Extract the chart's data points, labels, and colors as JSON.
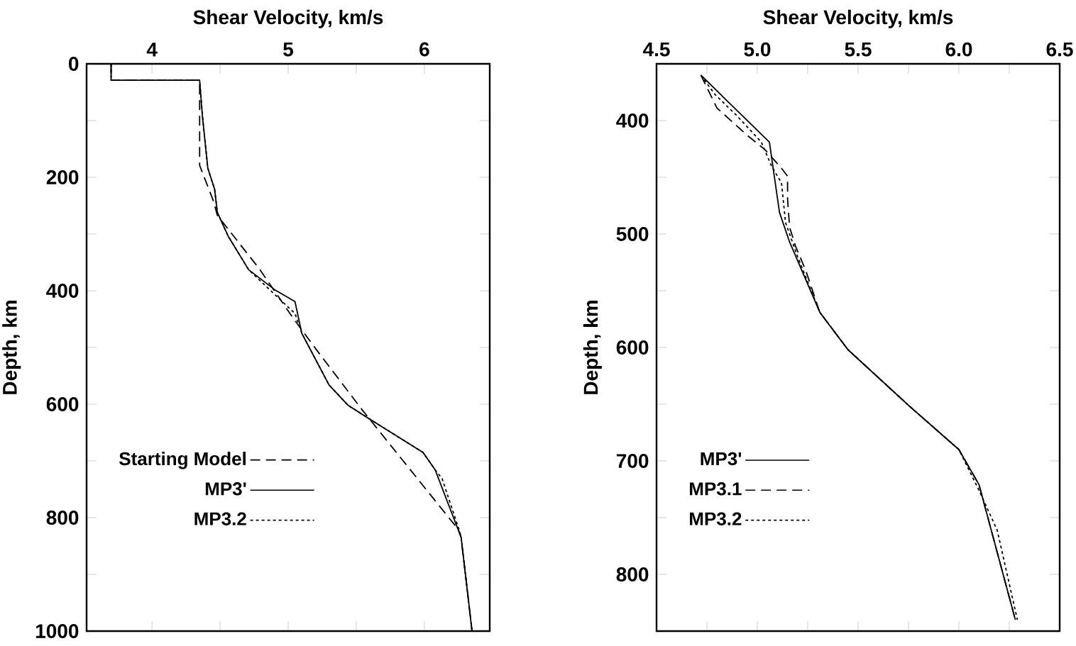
{
  "chart_data": [
    {
      "type": "line",
      "xlabel": "Shear Velocity, km/s",
      "ylabel": "Depth, km",
      "xlim": [
        3.52,
        6.48
      ],
      "ylim": [
        1000,
        0
      ],
      "xticks": [
        4,
        {
          "value": 4.5,
          "label": null
        },
        5,
        {
          "value": 5.5,
          "label": null
        },
        6
      ],
      "yticks": [
        0,
        {
          "value": 100,
          "label": null
        },
        200,
        {
          "value": 300,
          "label": null
        },
        400,
        {
          "value": 500,
          "label": null
        },
        600,
        {
          "value": 700,
          "label": null
        },
        800,
        {
          "value": 900,
          "label": null
        },
        1000
      ],
      "legend": "bottom left",
      "grid": false,
      "marker": "none",
      "series": [
        {
          "name": "Starting Model",
          "color": "#000000",
          "line_style": "dashed",
          "x": [
            3.7,
            3.7,
            4.35,
            4.35,
            4.45,
            4.48,
            4.79,
            5.03,
            5.22,
            5.55,
            6.25,
            6.27,
            6.35
          ],
          "values": [
            0,
            29,
            29,
            179,
            241,
            267,
            362,
            446,
            508,
            612,
            821,
            835,
            1000
          ]
        },
        {
          "name": "MP3'",
          "color": "#000000",
          "line_style": "solid",
          "x": [
            3.7,
            3.7,
            4.35,
            4.37,
            4.41,
            4.46,
            4.48,
            4.56,
            4.71,
            4.9,
            5.05,
            5.1,
            5.3,
            5.44,
            5.59,
            5.99,
            6.08,
            6.27,
            6.35
          ],
          "values": [
            0,
            29,
            29,
            91,
            184,
            221,
            262,
            304,
            363,
            398,
            419,
            475,
            566,
            602,
            625,
            685,
            716,
            835,
            1000
          ]
        },
        {
          "name": "MP3.2",
          "color": "#000000",
          "line_style": "dotted",
          "x": [
            3.7,
            3.7,
            4.35,
            4.37,
            4.41,
            4.46,
            4.48,
            4.56,
            4.71,
            4.85,
            5.05,
            5.1,
            5.3,
            5.44,
            5.59,
            5.99,
            6.08,
            6.13,
            6.26,
            6.27,
            6.35
          ],
          "values": [
            0,
            29,
            29,
            91,
            184,
            221,
            262,
            304,
            363,
            395,
            440,
            475,
            566,
            602,
            625,
            685,
            716,
            731,
            825,
            835,
            1000
          ]
        }
      ]
    },
    {
      "type": "line",
      "xlabel": "Shear Velocity, km/s",
      "ylabel": "Depth, km",
      "xlim": [
        4.5,
        6.5
      ],
      "ylim": [
        850,
        350
      ],
      "xticks": [
        4.5,
        {
          "value": 4.75,
          "label": null
        },
        {
          "value": 5,
          "label": "5.0"
        },
        {
          "value": 5.25,
          "label": null
        },
        5.5,
        {
          "value": 5.75,
          "label": null
        },
        {
          "value": 6,
          "label": "6.0"
        },
        {
          "value": 6.25,
          "label": null
        },
        6.5
      ],
      "yticks": [
        {
          "value": 350,
          "label": null
        },
        400,
        {
          "value": 450,
          "label": null
        },
        500,
        {
          "value": 550,
          "label": null
        },
        600,
        {
          "value": 650,
          "label": null
        },
        700,
        {
          "value": 750,
          "label": null
        },
        800,
        {
          "value": 850,
          "label": null
        }
      ],
      "legend": "bottom left",
      "grid": false,
      "marker": "none",
      "series": [
        {
          "name": "MP3'",
          "color": "#000000",
          "line_style": "solid",
          "x": [
            4.72,
            5.06,
            5.11,
            5.16,
            5.31,
            5.45,
            5.75,
            6.0,
            6.1,
            6.28
          ],
          "values": [
            360,
            419,
            481,
            507,
            569,
            602,
            651,
            690,
            721,
            840
          ]
        },
        {
          "name": "MP3.1",
          "color": "#000000",
          "line_style": "dashed",
          "x": [
            4.72,
            4.8,
            4.95,
            5.04,
            5.12,
            5.15,
            5.15,
            5.16,
            5.19,
            5.24,
            5.31,
            5.45,
            5.75,
            6.0,
            6.1,
            6.28
          ],
          "values": [
            360,
            389,
            413,
            426,
            442,
            449,
            469,
            494,
            511,
            532,
            569,
            602,
            651,
            690,
            721,
            840
          ]
        },
        {
          "name": "MP3.2",
          "color": "#000000",
          "line_style": "dotted",
          "x": [
            4.72,
            4.79,
            4.9,
            5.02,
            5.07,
            5.12,
            5.14,
            5.2,
            5.31,
            5.45,
            5.75,
            6.0,
            6.1,
            6.19,
            6.29
          ],
          "values": [
            360,
            377,
            396,
            419,
            440,
            455,
            490,
            520,
            569,
            602,
            651,
            690,
            726,
            761,
            840
          ]
        }
      ]
    }
  ]
}
